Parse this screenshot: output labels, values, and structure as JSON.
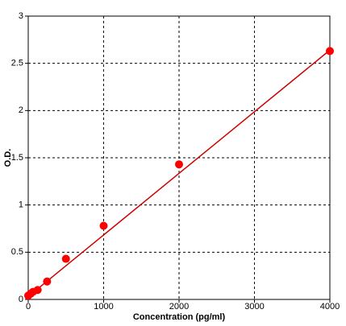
{
  "chart_data": {
    "type": "scatter",
    "x_label": "Concentration (pg/ml)",
    "y_label": "O.D.",
    "series": [
      {
        "color": "#ff0000",
        "x": [
          0,
          31.25,
          62.5,
          125,
          250,
          500,
          1000,
          2000,
          4000
        ],
        "values": [
          0.04,
          0.06,
          0.08,
          0.1,
          0.19,
          0.43,
          0.78,
          1.43,
          2.63
        ]
      },
      {
        "color": "#cc0000",
        "line": true,
        "x": [
          0,
          4000
        ],
        "values": [
          0.03,
          2.64
        ]
      }
    ],
    "xlim": [
      0,
      4000
    ],
    "xticks": [
      0,
      1000,
      2000,
      3000,
      4000
    ],
    "ylim": [
      0,
      3
    ],
    "yticks": [
      0,
      0.5,
      1,
      1.5,
      2,
      2.5,
      3
    ],
    "grid": true
  }
}
